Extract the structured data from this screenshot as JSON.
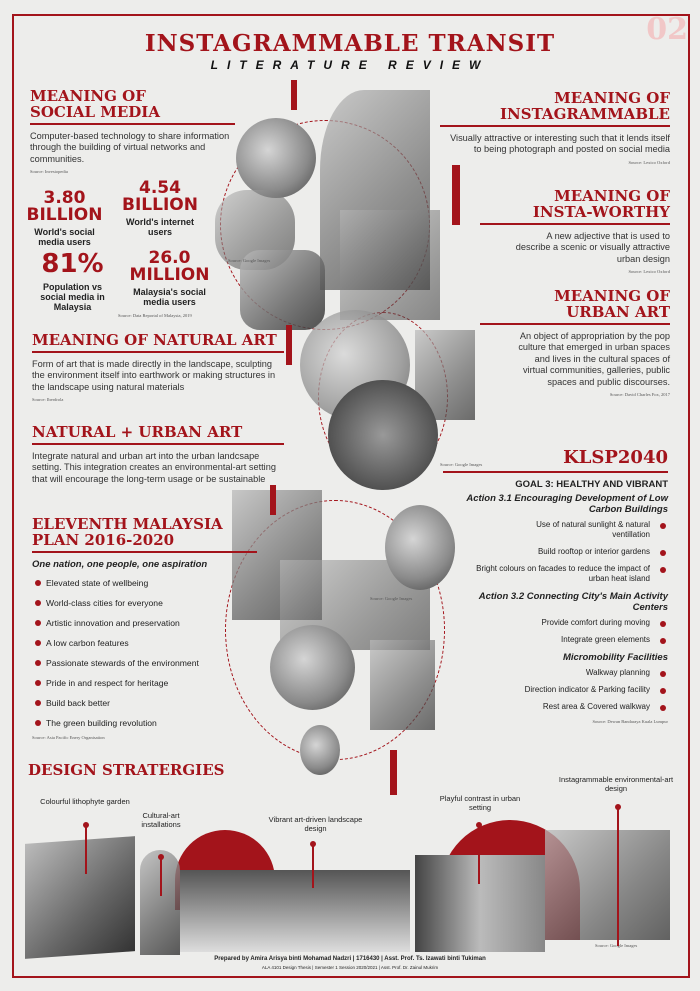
{
  "page_number": "02",
  "title": "INSTAGRAMMABLE TRANSIT",
  "subtitle": "LITERATURE REVIEW",
  "colors": {
    "accent": "#a3141b",
    "background": "#ededeb"
  },
  "social_media": {
    "heading1": "MEANING OF",
    "heading2": "SOCIAL MEDIA",
    "text": "Computer-based technology to share information through the building of virtual networks and communities.",
    "source": "Source: Investopedia",
    "stats": [
      {
        "value": "3.80",
        "unit": "BILLION",
        "label": "World's social media users"
      },
      {
        "value": "4.54",
        "unit": "BILLION",
        "label": "World's internet users"
      },
      {
        "value": "81%",
        "unit": "",
        "label": "Population vs social media in Malaysia"
      },
      {
        "value": "26.0",
        "unit": "MILLION",
        "label": "Malaysia's social media users"
      }
    ],
    "stats_source": "Source: Data Reportal of Malaysia, 2019",
    "image_source": "Source: Google Images"
  },
  "instagrammable": {
    "heading1": "MEANING OF",
    "heading2": "INSTAGRAMMABLE",
    "text": "Visually attractive or interesting such that it lends itself to being photograph and posted on social media",
    "source": "Source: Lexico Oxford"
  },
  "instaworthy": {
    "heading1": "MEANING OF",
    "heading2": "INSTA-WORTHY",
    "text": "A new adjective that is used to describe a scenic or visually attractive urban design",
    "source": "Source: Lexico Oxford"
  },
  "urban_art": {
    "heading1": "MEANING OF",
    "heading2": "URBAN ART",
    "text": "An object of appropriation by the pop culture that emerged in urban spaces and lives in the cultural spaces of virtual communities, galleries, public spaces and public discourses.",
    "source": "Source: David Charles Fox, 2017"
  },
  "natural_art": {
    "heading": "MEANING OF NATURAL ART",
    "text": "Form of art that is made directly in the landscape, sculpting the environment itself into earthwork or making structures in the landscape using natural materials",
    "source": "Source: Iberdrola",
    "image_source": "Source: Google Images"
  },
  "natural_urban": {
    "heading": "NATURAL + URBAN ART",
    "text": "Integrate natural and urban art into the urban landcsape setting. This integration creates an environmental-art setting that will encourage the long-term usage or be sustainable"
  },
  "malaysia_plan": {
    "heading1": "ELEVENTH MALAYSIA",
    "heading2": "PLAN 2016-2020",
    "tagline": "One nation, one people, one aspiration",
    "items": [
      "Elevated state of wellbeing",
      "World-class cities for everyone",
      "Artistic innovation and preservation",
      "A low carbon features",
      "Passionate stewards of the environment",
      "Pride in and respect for heritage",
      "Build back better",
      "The green building revolution"
    ],
    "source": "Source: Asia Pacific Enery Organisation",
    "image_source": "Source: Google Images"
  },
  "klsp": {
    "heading": "KLSP2040",
    "goal": "GOAL 3: HEALTHY AND VIBRANT",
    "action1": "Action 3.1 Encouraging Development of Low Carbon Buildings",
    "action1_items": [
      "Use of natural sunlight & natural ventillation",
      "Build rooftop or interior gardens",
      "Bright colours on facades to reduce the impact of urban heat island"
    ],
    "action2": "Action 3.2 Connecting City's Main Activity Centers",
    "action2_items": [
      "Provide comfort during moving",
      "Integrate green elements"
    ],
    "micro": "Micromobility Facilities",
    "micro_items": [
      "Walkway planning",
      "Direction indicator & Parking facility",
      "Rest area & Covered walkway"
    ],
    "source": "Source: Dewan Bandaraya Kuala Lumpur"
  },
  "design": {
    "heading": "DESIGN STRATERGIES",
    "labels": [
      "Colourful lithophyte garden",
      "Cultural-art installations",
      "Vibrant art-driven landscape design",
      "Playful contrast in urban setting",
      "Instagrammable environmental-art design"
    ],
    "image_source": "Source: Google Images"
  },
  "footer": {
    "line1": "Prepared by Amira Arisya binti Mohamad Nadzri  |  1716430  |  Asst. Prof. Ts. Izawati binti Tukiman",
    "line2": "ALA 4101  Design Thesis  |  Semester 1 Session 2020/2021  |  Asst. Prof. Dr. Zainul Mukrim"
  }
}
